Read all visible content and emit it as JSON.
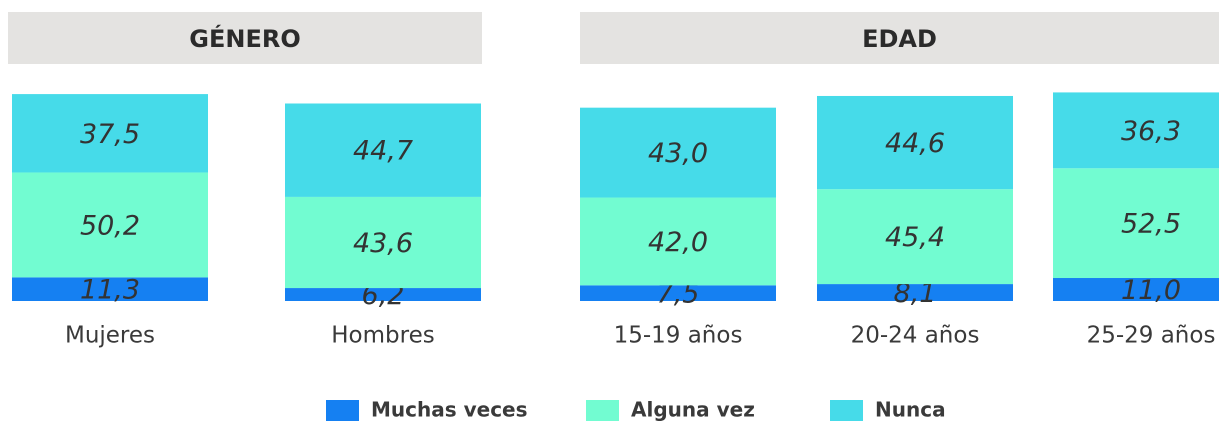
{
  "chart_data": {
    "type": "bar",
    "stacked": true,
    "groups": [
      {
        "title": "GÉNERO",
        "categories": [
          "Mujeres",
          "Hombres"
        ]
      },
      {
        "title": "EDAD",
        "categories": [
          "15-19 años",
          "20-24 años",
          "25-29 años"
        ]
      }
    ],
    "series": [
      {
        "name": "Muchas veces",
        "color": "#1580f2",
        "values": [
          11.3,
          6.2,
          7.5,
          8.1,
          11.0
        ],
        "value_labels": [
          "11,3",
          "6,2",
          "7,5",
          "8,1",
          "11,0"
        ]
      },
      {
        "name": "Alguna vez",
        "color": "#72fcd1",
        "values": [
          50.2,
          43.6,
          42.0,
          45.4,
          52.5
        ],
        "value_labels": [
          "50,2",
          "43,6",
          "42,0",
          "45,4",
          "52,5"
        ]
      },
      {
        "name": "Nunca",
        "color": "#46dbe9",
        "values": [
          37.5,
          44.7,
          43.0,
          44.6,
          36.3
        ],
        "value_labels": [
          "37,5",
          "44,7",
          "43,0",
          "44,6",
          "36,3"
        ]
      }
    ],
    "ylim": [
      0,
      100
    ]
  }
}
